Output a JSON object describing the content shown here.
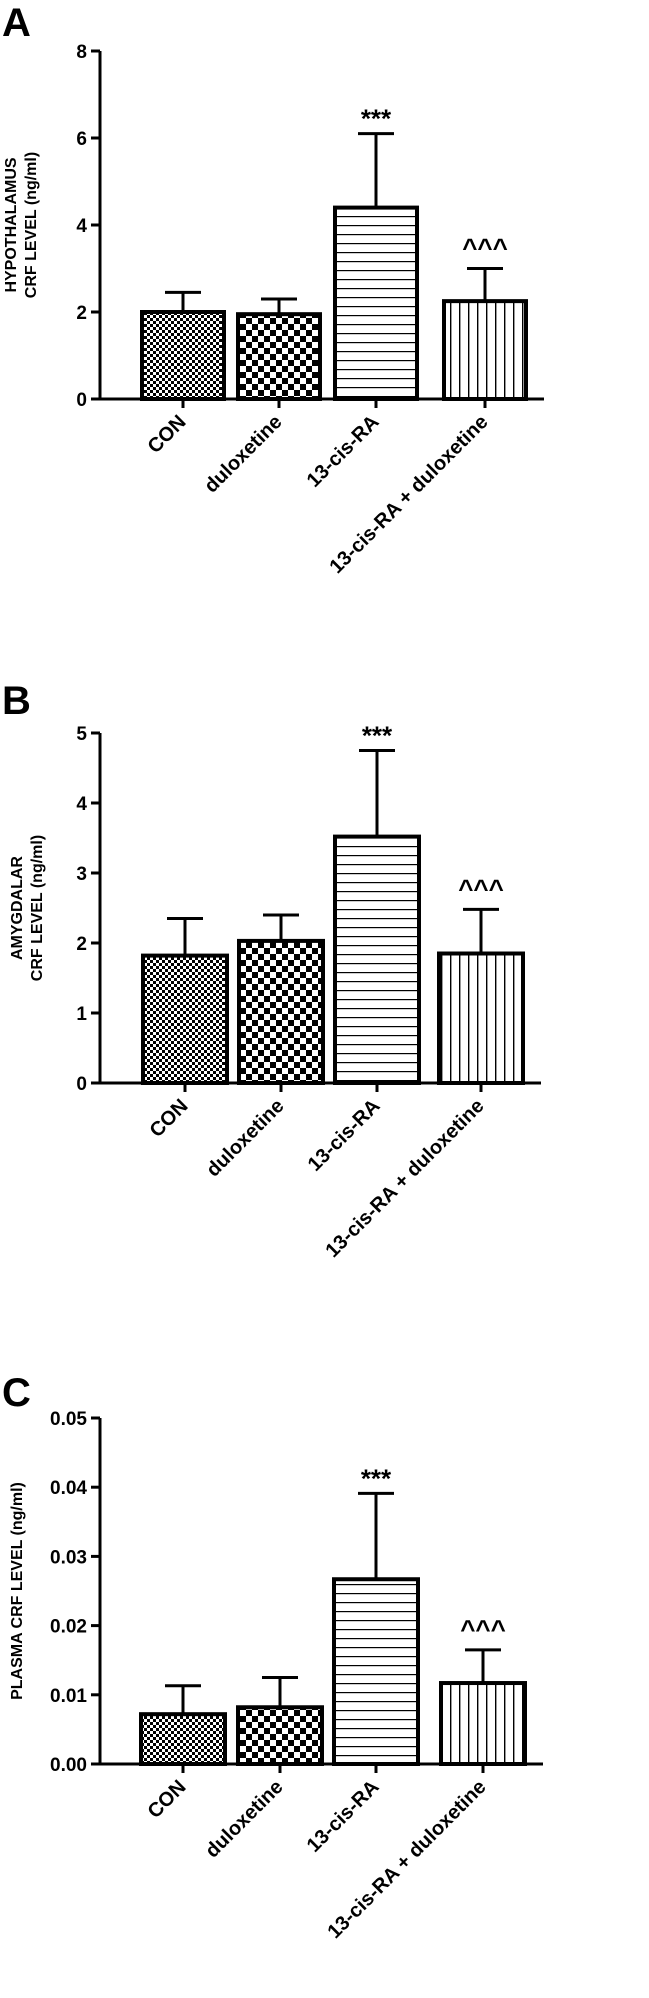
{
  "chart_data": [
    {
      "type": "bar",
      "panel": "A",
      "ylabel": [
        "HYPOTHALAMUS",
        "CRF LEVEL (ng/ml)"
      ],
      "categories": [
        "CON",
        "duloxetine",
        "13-cis-RA",
        "13-cis-RA + duloxetine"
      ],
      "values": [
        2.0,
        1.95,
        4.4,
        2.25
      ],
      "errors": [
        0.45,
        0.35,
        1.7,
        0.75
      ],
      "annotations": [
        "",
        "",
        "***",
        "^^^"
      ],
      "patterns": [
        "checker-small",
        "checker-large",
        "horizontal-lines",
        "vertical-lines"
      ],
      "ylim": [
        0,
        8
      ],
      "yticks": [
        "0",
        "2",
        "4",
        "6",
        "8"
      ]
    },
    {
      "type": "bar",
      "panel": "B",
      "ylabel": [
        "AMYGDALAR",
        "CRF LEVEL (ng/ml)"
      ],
      "categories": [
        "CON",
        "duloxetine",
        "13-cis-RA",
        "13-cis-RA + duloxetine"
      ],
      "values": [
        1.82,
        2.03,
        3.52,
        1.85
      ],
      "errors": [
        0.53,
        0.37,
        1.23,
        0.63
      ],
      "annotations": [
        "",
        "",
        "***",
        "^^^"
      ],
      "patterns": [
        "checker-small",
        "checker-large",
        "horizontal-lines",
        "vertical-lines"
      ],
      "ylim": [
        0,
        5
      ],
      "yticks": [
        "0",
        "1",
        "2",
        "3",
        "4",
        "5"
      ]
    },
    {
      "type": "bar",
      "panel": "C",
      "ylabel": [
        "PLASMA CRF LEVEL (ng/ml)"
      ],
      "categories": [
        "CON",
        "duloxetine",
        "13-cis-RA",
        "13-cis-RA + duloxetine"
      ],
      "values": [
        0.0072,
        0.0082,
        0.0267,
        0.0117
      ],
      "errors": [
        0.0041,
        0.0043,
        0.0124,
        0.0048
      ],
      "annotations": [
        "",
        "",
        "***",
        "^^^"
      ],
      "patterns": [
        "checker-small",
        "checker-large",
        "horizontal-lines",
        "vertical-lines"
      ],
      "ylim": [
        0,
        0.05
      ],
      "yticks": [
        "0.00",
        "0.01",
        "0.02",
        "0.03",
        "0.04",
        "0.05"
      ]
    }
  ]
}
